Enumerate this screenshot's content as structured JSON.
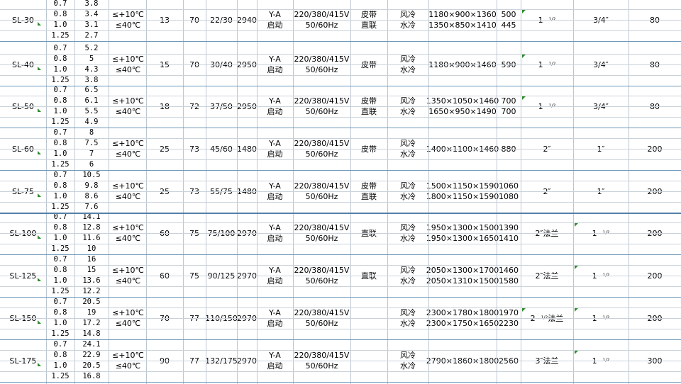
{
  "units": {
    "temp_high": "≤+10℃",
    "temp_low": "≤40℃",
    "start_top": "Y-A",
    "start_bottom": "启动",
    "voltage": "220/380/415V",
    "frequency": "50/60Hz",
    "fraction": "1/2"
  },
  "rows": [
    {
      "model": "SL-30",
      "pressures": [
        "0.7",
        "0.8",
        "1.0",
        "1.25"
      ],
      "flows": [
        "3.8",
        "3.4",
        "3.1",
        "2.7"
      ],
      "kw": "13",
      "noise": "70",
      "power": "22/30",
      "rpm": "2940",
      "drive": [
        "皮带",
        "直联"
      ],
      "cooling": [
        "风冷",
        "水冷"
      ],
      "dims": [
        "1180×900×1360",
        "1350×850×1410"
      ],
      "weight": [
        "500",
        "445"
      ],
      "pipe1": "1",
      "pipe1_frac": true,
      "pipe1_tag": "",
      "pipe2": "3/4″",
      "pipe2_frac": false,
      "pipe2_tag": "",
      "last": "80"
    },
    {
      "model": "SL-40",
      "pressures": [
        "0.7",
        "0.8",
        "1.0",
        "1.25"
      ],
      "flows": [
        "5.2",
        "5",
        "4.3",
        "3.8"
      ],
      "kw": "15",
      "noise": "70",
      "power": "30/40",
      "rpm": "2950",
      "drive": [
        "皮带"
      ],
      "cooling": [
        "风冷",
        "水冷"
      ],
      "dims": [
        "1180×900×1460"
      ],
      "weight": [
        "590"
      ],
      "pipe1": "1",
      "pipe1_frac": true,
      "pipe1_tag": "",
      "pipe2": "3/4″",
      "pipe2_frac": false,
      "pipe2_tag": "",
      "last": "80"
    },
    {
      "model": "SL-50",
      "pressures": [
        "0.7",
        "0.8",
        "1.0",
        "1.25"
      ],
      "flows": [
        "6.5",
        "6.1",
        "5.5",
        "4.9"
      ],
      "kw": "18",
      "noise": "72",
      "power": "37/50",
      "rpm": "2950",
      "drive": [
        "皮带",
        "直联"
      ],
      "cooling": [
        "风冷",
        "水冷"
      ],
      "dims": [
        "1350×1050×1460",
        "1650×950×1490"
      ],
      "weight": [
        "700",
        "700"
      ],
      "pipe1": "1",
      "pipe1_frac": true,
      "pipe1_tag": "",
      "pipe2": "3/4″",
      "pipe2_frac": false,
      "pipe2_tag": "",
      "last": "80"
    },
    {
      "model": "SL-60",
      "pressures": [
        "0.7",
        "0.8",
        "1.0",
        "1.25"
      ],
      "flows": [
        "8",
        "7.5",
        "7",
        "6"
      ],
      "kw": "25",
      "noise": "73",
      "power": "45/60",
      "rpm": "1480",
      "drive": [
        "皮带"
      ],
      "cooling": [
        "风冷",
        "水冷"
      ],
      "dims": [
        "1400×1100×1460"
      ],
      "weight": [
        "880"
      ],
      "pipe1": "2″",
      "pipe1_frac": false,
      "pipe1_tag": "",
      "pipe2": "1″",
      "pipe2_frac": false,
      "pipe2_tag": "",
      "last": "200"
    },
    {
      "model": "SL-75",
      "pressures": [
        "0.7",
        "0.8",
        "1.0",
        "1.25"
      ],
      "flows": [
        "10.5",
        "9.8",
        "8.6",
        "7.6"
      ],
      "kw": "25",
      "noise": "73",
      "power": "55/75",
      "rpm": "1480",
      "drive": [
        "皮带",
        "直联"
      ],
      "cooling": [
        "风冷",
        "水冷"
      ],
      "dims": [
        "1500×1150×1590",
        "1800×1150×1590"
      ],
      "weight": [
        "1060",
        "1080"
      ],
      "pipe1": "2″",
      "pipe1_frac": false,
      "pipe1_tag": "",
      "pipe2": "1″",
      "pipe2_frac": false,
      "pipe2_tag": "",
      "last": "200"
    },
    {
      "model": "SL-100",
      "pressures": [
        "0.7",
        "0.8",
        "1.0",
        "1.25"
      ],
      "flows": [
        "14.1",
        "12.8",
        "11.6",
        "10"
      ],
      "kw": "60",
      "noise": "75",
      "power": "75/100",
      "rpm": "2970",
      "drive": [
        "直联"
      ],
      "cooling": [
        "风冷",
        "水冷"
      ],
      "dims": [
        "1950×1300×1500",
        "1950×1300×1650"
      ],
      "weight": [
        "1390",
        "1410"
      ],
      "pipe1": "2″法兰",
      "pipe1_frac": false,
      "pipe1_tag": "",
      "pipe2": "1",
      "pipe2_frac": true,
      "pipe2_tag": "",
      "last": "200"
    },
    {
      "model": "SL-125",
      "pressures": [
        "0.7",
        "0.8",
        "1.0",
        "1.25"
      ],
      "flows": [
        "16",
        "15",
        "13.6",
        "12.2"
      ],
      "kw": "60",
      "noise": "75",
      "power": "90/125",
      "rpm": "2970",
      "drive": [
        "直联"
      ],
      "cooling": [
        "风冷",
        "水冷"
      ],
      "dims": [
        "2050×1300×1700",
        "2050×1310×1500"
      ],
      "weight": [
        "1460",
        "1580"
      ],
      "pipe1": "2″法兰",
      "pipe1_frac": false,
      "pipe1_tag": "",
      "pipe2": "1",
      "pipe2_frac": true,
      "pipe2_tag": "",
      "last": "200"
    },
    {
      "model": "SL-150",
      "pressures": [
        "0.7",
        "0.8",
        "1.0",
        "1.25"
      ],
      "flows": [
        "20.5",
        "19",
        "17.2",
        "14.8"
      ],
      "kw": "70",
      "noise": "77",
      "power": "110/150",
      "rpm": "2970",
      "drive": [],
      "cooling": [
        "风冷",
        "水冷"
      ],
      "dims": [
        "2300×1780×1800",
        "2300×1750×1650"
      ],
      "weight": [
        "1970",
        "2230"
      ],
      "pipe1": "2",
      "pipe1_frac": true,
      "pipe1_tag": "法兰",
      "pipe2": "1",
      "pipe2_frac": true,
      "pipe2_tag": "",
      "last": "200"
    },
    {
      "model": "SL-175",
      "pressures": [
        "0.7",
        "0.8",
        "1.0",
        "1.25"
      ],
      "flows": [
        "24.1",
        "22.9",
        "20.5",
        "16.8"
      ],
      "kw": "90",
      "noise": "77",
      "power": "132/175",
      "rpm": "2970",
      "drive": [],
      "cooling": [
        "风冷",
        "水冷"
      ],
      "dims": [
        "2790×1860×1800"
      ],
      "weight": [
        "2560"
      ],
      "pipe1": "3″法兰",
      "pipe1_frac": false,
      "pipe1_tag": "",
      "pipe2": "1",
      "pipe2_frac": true,
      "pipe2_tag": "",
      "last": "300"
    }
  ]
}
